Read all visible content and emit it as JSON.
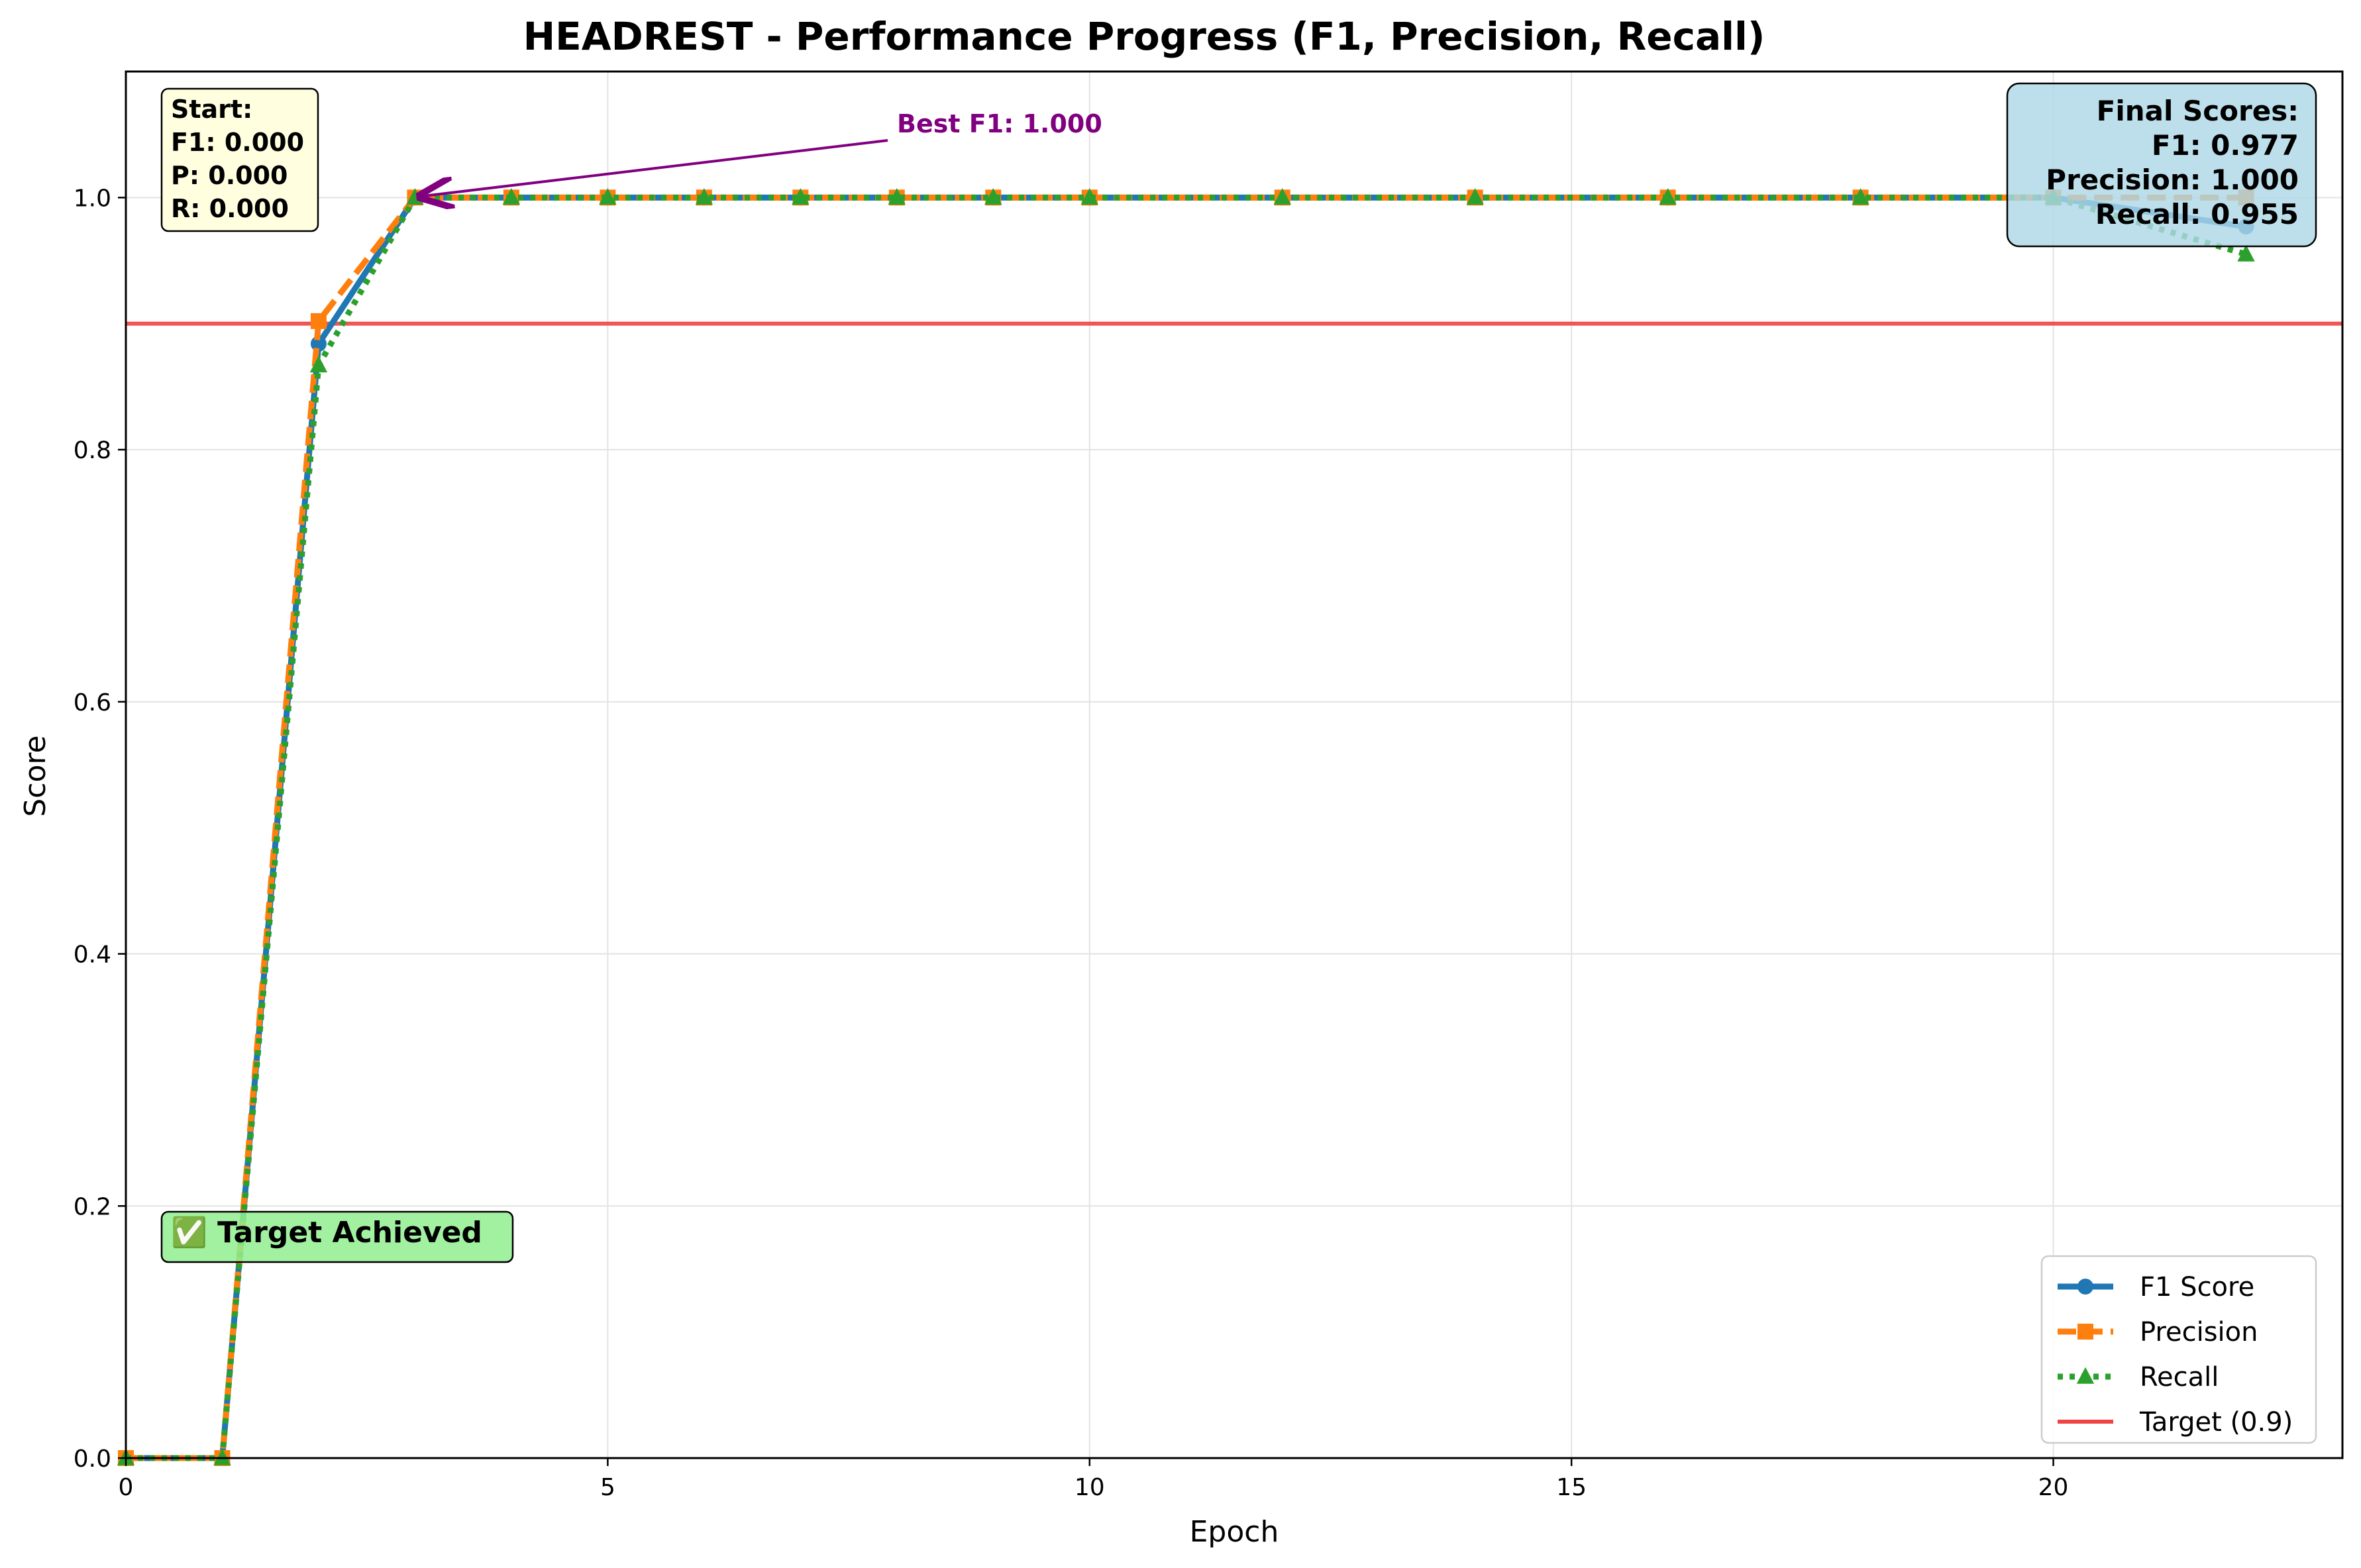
{
  "chart_data": {
    "type": "line",
    "title": "HEADREST - Performance Progress (F1, Precision, Recall)",
    "xlabel": "Epoch",
    "ylabel": "Score",
    "xlim": [
      0,
      23
    ],
    "ylim": [
      0,
      1.1
    ],
    "xticks": [
      0,
      5,
      10,
      15,
      20
    ],
    "yticks": [
      0.0,
      0.2,
      0.4,
      0.6,
      0.8,
      1.0
    ],
    "grid": true,
    "legend_position": "bottom-right",
    "series": [
      {
        "name": "F1 Score",
        "color": "#1f77b4",
        "marker": "circle",
        "style": "solid",
        "x": [
          0,
          1,
          2,
          3,
          4,
          5,
          6,
          7,
          8,
          9,
          10,
          12,
          14,
          16,
          18,
          20,
          22
        ],
        "y": [
          0.0,
          0.0,
          0.884,
          1.0,
          1.0,
          1.0,
          1.0,
          1.0,
          1.0,
          1.0,
          1.0,
          1.0,
          1.0,
          1.0,
          1.0,
          1.0,
          0.977
        ]
      },
      {
        "name": "Precision",
        "color": "#ff7f0e",
        "marker": "square",
        "style": "dashed",
        "x": [
          0,
          1,
          2,
          3,
          4,
          5,
          6,
          7,
          8,
          9,
          10,
          12,
          14,
          16,
          18,
          20,
          22
        ],
        "y": [
          0.0,
          0.0,
          0.902,
          1.0,
          1.0,
          1.0,
          1.0,
          1.0,
          1.0,
          1.0,
          1.0,
          1.0,
          1.0,
          1.0,
          1.0,
          1.0,
          1.0
        ]
      },
      {
        "name": "Recall",
        "color": "#2ca02c",
        "marker": "triangle",
        "style": "dotted",
        "x": [
          0,
          1,
          2,
          3,
          4,
          5,
          6,
          7,
          8,
          9,
          10,
          12,
          14,
          16,
          18,
          20,
          22
        ],
        "y": [
          0.0,
          0.0,
          0.867,
          1.0,
          1.0,
          1.0,
          1.0,
          1.0,
          1.0,
          1.0,
          1.0,
          1.0,
          1.0,
          1.0,
          1.0,
          1.0,
          0.955
        ]
      }
    ],
    "target_line": {
      "label": "Target (0.9)",
      "value": 0.9,
      "color": "#ef4444"
    },
    "annotations": {
      "best": {
        "text": "Best F1: 1.000",
        "x": 3,
        "y": 1.0,
        "color": "#800080"
      },
      "start_box": [
        "Start:",
        "F1: 0.000",
        "P: 0.000",
        "R: 0.000"
      ],
      "final_box": [
        "Final Scores:",
        "F1: 0.977",
        "Precision: 1.000",
        "Recall: 0.955"
      ],
      "target_badge": "✅ Target Achieved"
    }
  }
}
